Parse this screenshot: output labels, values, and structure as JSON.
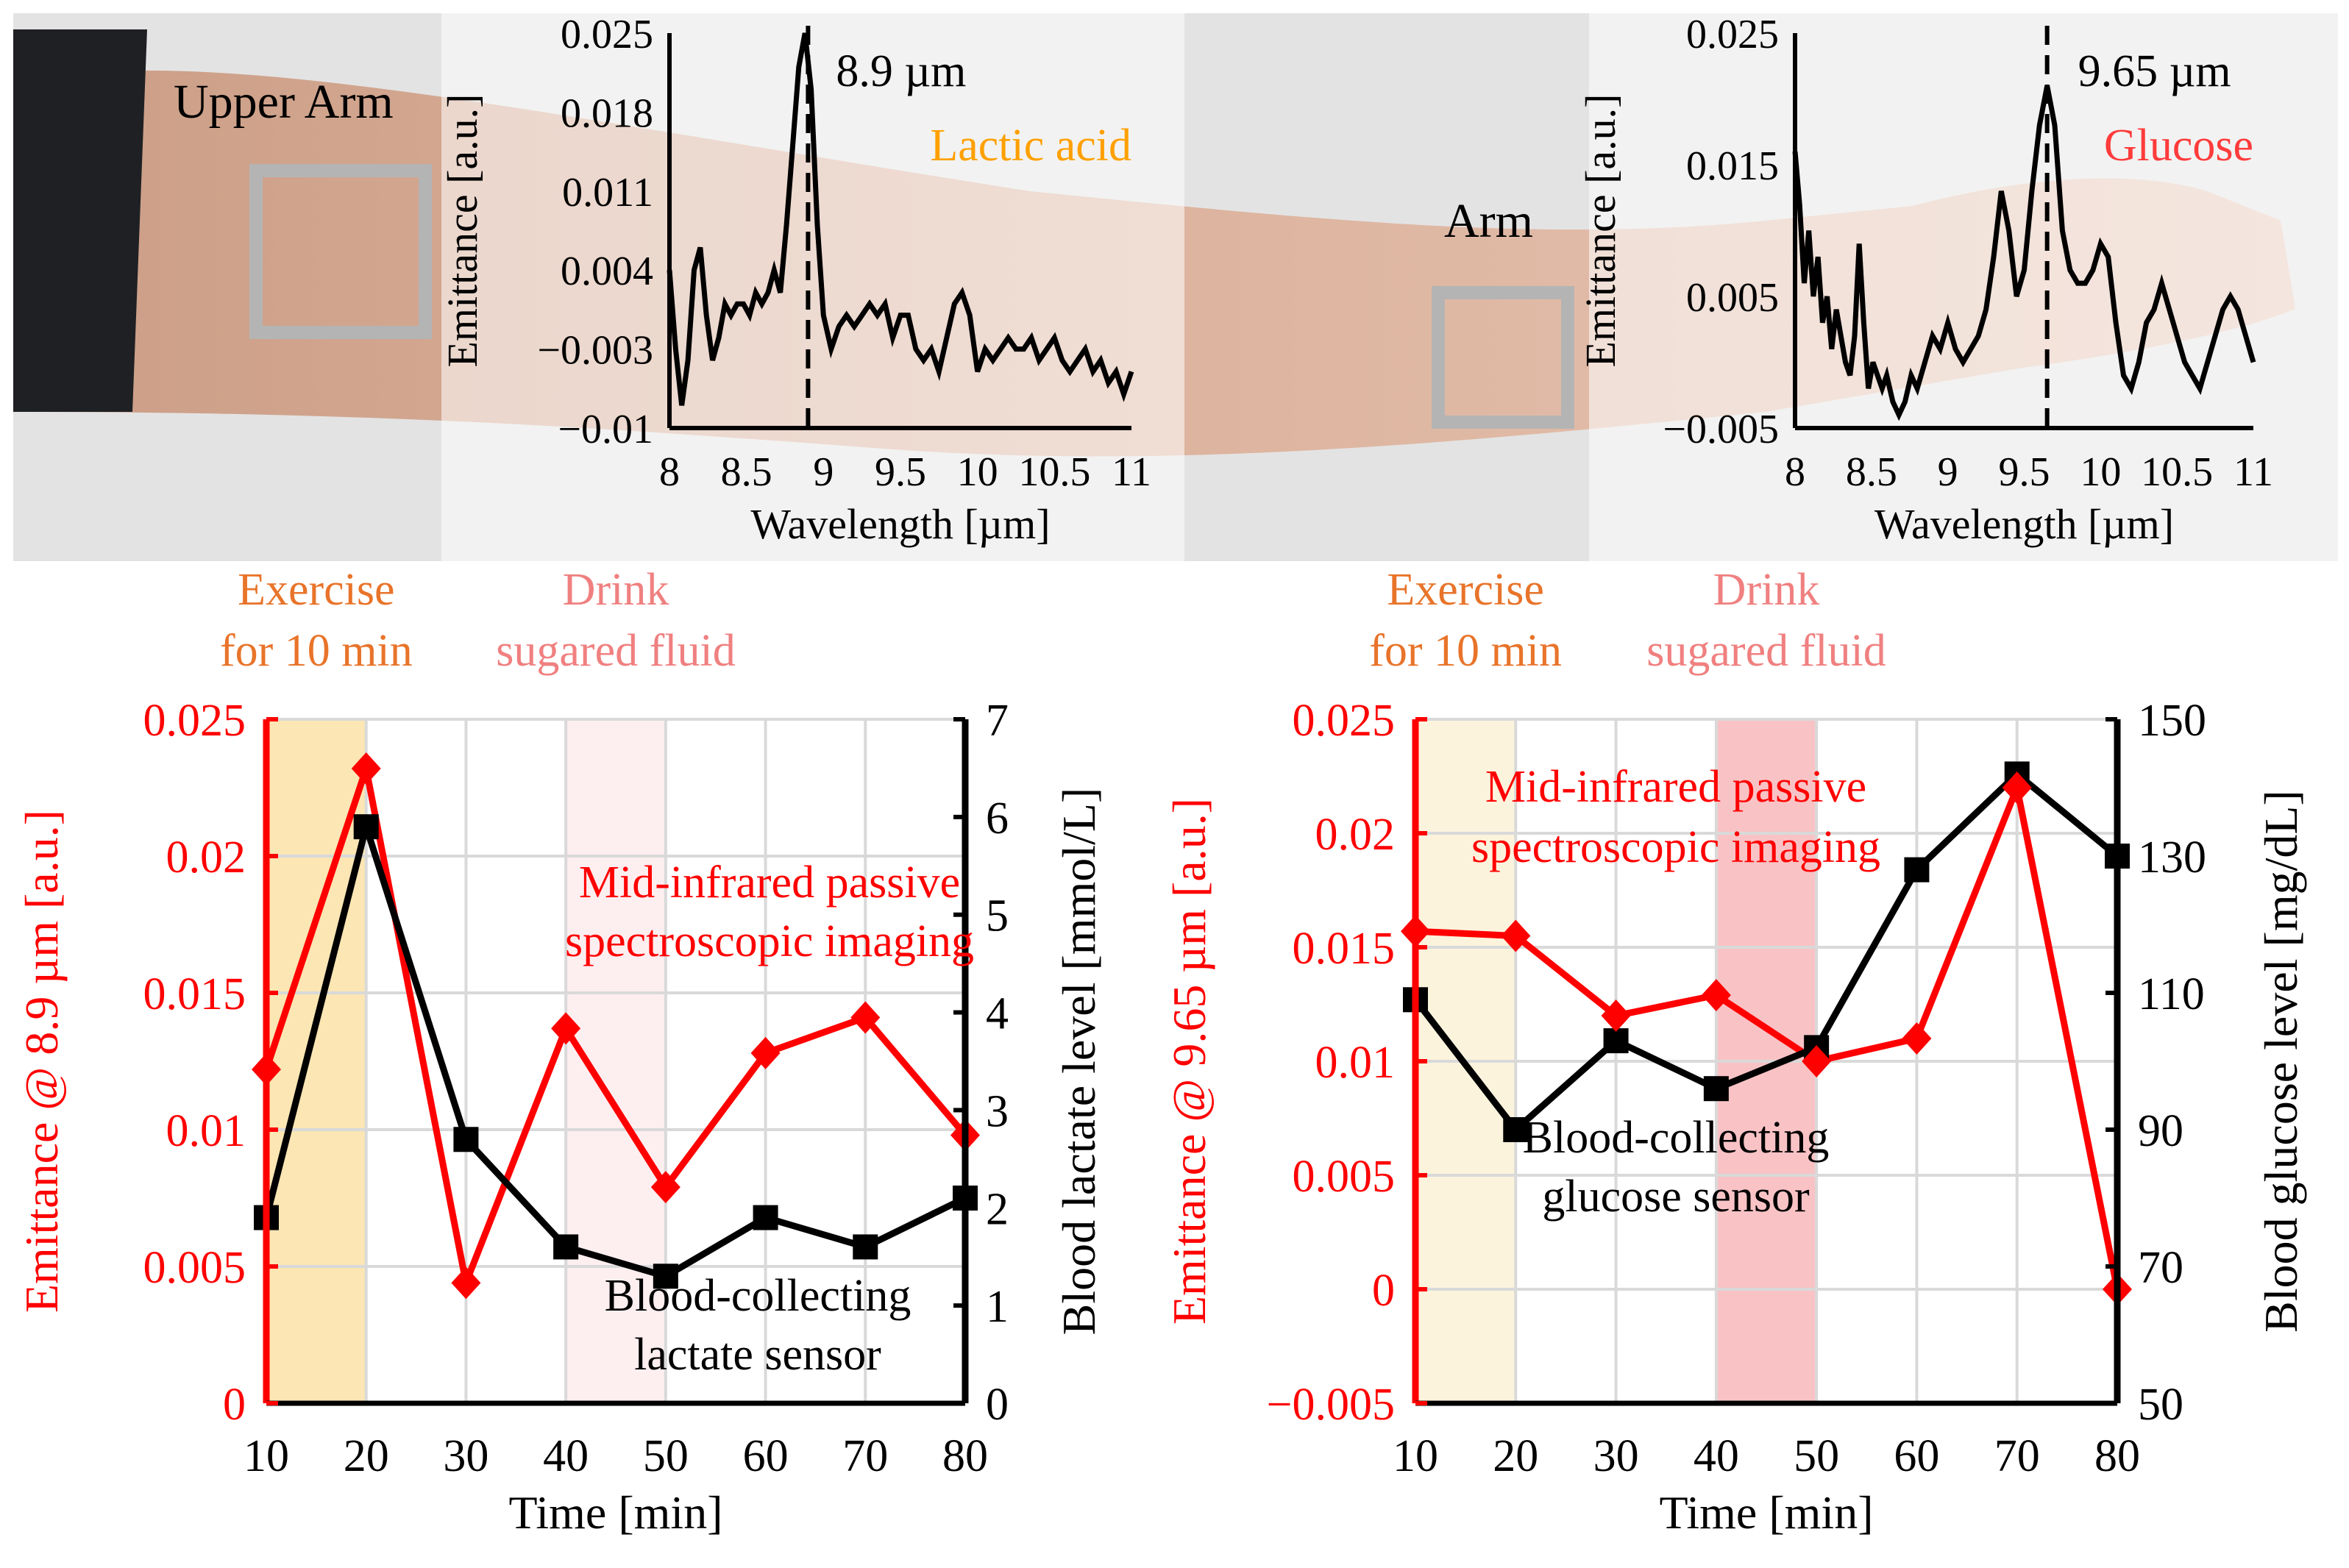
{
  "colors": {
    "red": "#ff0000",
    "black": "#000000",
    "orange_label": "#e8742a",
    "pink_label": "#f08080",
    "lactic_label": "#ffa000",
    "glucose_label": "#ff3b3b",
    "exercise_band_left": "#fbe6b4",
    "drink_band_left": "#fdeef0",
    "exercise_band_right": "#fcf3dd",
    "drink_band_right": "#f9c3c6",
    "grid": "#d9d9d9",
    "roi_box": "#b4b4b4"
  },
  "photo": {
    "upper_arm_label": "Upper Arm",
    "arm_label": "Arm"
  },
  "chart_data": [
    {
      "id": "inset-lactic",
      "type": "line",
      "title": "",
      "xlabel": "Wavelength [µm]",
      "ylabel": "Emittance [a.u.]",
      "xlim": [
        8,
        11
      ],
      "ylim": [
        -0.01,
        0.025
      ],
      "xticks": [
        8,
        8.5,
        9,
        9.5,
        10,
        10.5,
        11
      ],
      "xtick_labels": [
        "8",
        "8.5",
        "9",
        "9.5",
        "10",
        "10.5",
        "11"
      ],
      "yticks": [
        -0.01,
        -0.003,
        0.004,
        0.011,
        0.018,
        0.025
      ],
      "ytick_labels": [
        "−0.01",
        "−0.003",
        "0.004",
        "0.011",
        "0.018",
        "0.025"
      ],
      "peak_x": 8.9,
      "peak_label": "8.9 µm",
      "analyte_label": "Lactic acid",
      "x": [
        8.0,
        8.04,
        8.08,
        8.12,
        8.16,
        8.2,
        8.24,
        8.28,
        8.32,
        8.36,
        8.4,
        8.44,
        8.48,
        8.52,
        8.56,
        8.6,
        8.64,
        8.68,
        8.72,
        8.76,
        8.8,
        8.84,
        8.88,
        8.92,
        8.96,
        9.0,
        9.05,
        9.1,
        9.15,
        9.2,
        9.25,
        9.3,
        9.35,
        9.4,
        9.45,
        9.5,
        9.55,
        9.6,
        9.65,
        9.7,
        9.75,
        9.8,
        9.85,
        9.9,
        9.95,
        10.0,
        10.05,
        10.1,
        10.15,
        10.2,
        10.25,
        10.3,
        10.35,
        10.4,
        10.45,
        10.5,
        10.55,
        10.6,
        10.65,
        10.7,
        10.75,
        10.8,
        10.85,
        10.9,
        10.95,
        11.0
      ],
      "y": [
        0.004,
        -0.003,
        -0.008,
        -0.004,
        0.004,
        0.006,
        0.0,
        -0.004,
        -0.002,
        0.001,
        0.0,
        0.001,
        0.001,
        0.0,
        0.002,
        0.001,
        0.002,
        0.004,
        0.002,
        0.008,
        0.015,
        0.022,
        0.025,
        0.02,
        0.008,
        0.0,
        -0.003,
        -0.001,
        0.0,
        -0.001,
        0.0,
        0.001,
        0.0,
        0.001,
        -0.002,
        0.0,
        0.0,
        -0.003,
        -0.004,
        -0.003,
        -0.005,
        -0.002,
        0.001,
        0.002,
        0.0,
        -0.005,
        -0.003,
        -0.004,
        -0.003,
        -0.002,
        -0.003,
        -0.003,
        -0.002,
        -0.004,
        -0.003,
        -0.002,
        -0.004,
        -0.005,
        -0.004,
        -0.003,
        -0.005,
        -0.004,
        -0.006,
        -0.005,
        -0.007,
        -0.005
      ]
    },
    {
      "id": "inset-glucose",
      "type": "line",
      "title": "",
      "xlabel": "Wavelength [µm]",
      "ylabel": "Emittance [a.u.]",
      "xlim": [
        8,
        11
      ],
      "ylim": [
        -0.005,
        0.025
      ],
      "xticks": [
        8,
        8.5,
        9,
        9.5,
        10,
        10.5,
        11
      ],
      "xtick_labels": [
        "8",
        "8.5",
        "9",
        "9.5",
        "10",
        "10.5",
        "11"
      ],
      "yticks": [
        -0.005,
        0.005,
        0.015,
        0.025
      ],
      "ytick_labels": [
        "−0.005",
        "0.005",
        "0.015",
        "0.025"
      ],
      "peak_x": 9.65,
      "peak_label": "9.65 µm",
      "analyte_label": "Glucose",
      "x": [
        8.0,
        8.03,
        8.06,
        8.09,
        8.12,
        8.15,
        8.18,
        8.21,
        8.24,
        8.27,
        8.3,
        8.33,
        8.36,
        8.39,
        8.42,
        8.45,
        8.48,
        8.51,
        8.54,
        8.57,
        8.6,
        8.64,
        8.68,
        8.72,
        8.76,
        8.8,
        8.85,
        8.9,
        8.95,
        9.0,
        9.05,
        9.1,
        9.15,
        9.2,
        9.25,
        9.3,
        9.35,
        9.4,
        9.45,
        9.5,
        9.55,
        9.6,
        9.65,
        9.7,
        9.75,
        9.8,
        9.85,
        9.9,
        9.95,
        10.0,
        10.05,
        10.1,
        10.15,
        10.2,
        10.25,
        10.3,
        10.35,
        10.4,
        10.45,
        10.5,
        10.55,
        10.6,
        10.65,
        10.7,
        10.75,
        10.8,
        10.85,
        10.9,
        10.95,
        11.0
      ],
      "y": [
        0.016,
        0.012,
        0.006,
        0.01,
        0.005,
        0.008,
        0.003,
        0.005,
        0.001,
        0.004,
        0.002,
        0.0,
        -0.001,
        0.002,
        0.009,
        0.003,
        -0.002,
        0.0,
        -0.001,
        -0.002,
        -0.001,
        -0.003,
        -0.004,
        -0.003,
        -0.001,
        -0.002,
        0.0,
        0.002,
        0.001,
        0.003,
        0.001,
        0.0,
        0.001,
        0.002,
        0.004,
        0.008,
        0.013,
        0.01,
        0.005,
        0.007,
        0.013,
        0.018,
        0.021,
        0.018,
        0.01,
        0.007,
        0.006,
        0.006,
        0.007,
        0.009,
        0.008,
        0.003,
        -0.001,
        -0.002,
        0.0,
        0.003,
        0.004,
        0.006,
        0.004,
        0.002,
        0.0,
        -0.001,
        -0.002,
        0.0,
        0.002,
        0.004,
        0.005,
        0.004,
        0.002,
        0.0
      ]
    },
    {
      "id": "chart-lactate",
      "type": "line",
      "title": "",
      "xlabel": "Time [min]",
      "ylabel_left": "Emittance @ 8.9 µm [a.u.]",
      "ylabel_right": "Blood lactate level [mmol/L]",
      "x": [
        10,
        20,
        30,
        40,
        50,
        60,
        70,
        80
      ],
      "xlim": [
        10,
        80
      ],
      "xtick_labels": [
        "10",
        "20",
        "30",
        "40",
        "50",
        "60",
        "70",
        "80"
      ],
      "ylim_left": [
        0,
        0.025
      ],
      "yticks_left": [
        0,
        0.005,
        0.01,
        0.015,
        0.02,
        0.025
      ],
      "ytick_labels_left": [
        "0",
        "0.005",
        "0.01",
        "0.015",
        "0.02",
        "0.025"
      ],
      "ylim_right": [
        0,
        7
      ],
      "yticks_right": [
        0,
        1,
        2,
        3,
        4,
        5,
        6,
        7
      ],
      "ytick_labels_right": [
        "0",
        "1",
        "2",
        "3",
        "4",
        "5",
        "6",
        "7"
      ],
      "series": [
        {
          "name": "Mid-infrared passive spectroscopic imaging",
          "axis": "left",
          "marker": "diamond",
          "values": [
            0.0122,
            0.0232,
            0.0044,
            0.0137,
            0.0079,
            0.0128,
            0.0141,
            0.0098
          ]
        },
        {
          "name": "Blood-collecting lactate sensor",
          "axis": "right",
          "marker": "square",
          "values": [
            1.9,
            5.9,
            2.7,
            1.6,
            1.3,
            1.9,
            1.6,
            2.1
          ]
        }
      ],
      "series_label_red": [
        "Mid-infrared passive",
        "spectroscopic imaging"
      ],
      "series_label_black": [
        "Blood-collecting",
        "lactate sensor"
      ],
      "bands": [
        {
          "name": "exercise",
          "from": 10,
          "to": 20,
          "label": [
            "Exercise",
            "for 10 min"
          ]
        },
        {
          "name": "drink",
          "from": 40,
          "to": 50,
          "label": [
            "Drink",
            "sugared fluid"
          ]
        }
      ]
    },
    {
      "id": "chart-glucose",
      "type": "line",
      "title": "",
      "xlabel": "Time [min]",
      "ylabel_left": "Emittance @ 9.65 µm [a.u.]",
      "ylabel_right": "Blood glucose level [mg/dL]",
      "x": [
        10,
        20,
        30,
        40,
        50,
        60,
        70,
        80
      ],
      "xlim": [
        10,
        80
      ],
      "xtick_labels": [
        "10",
        "20",
        "30",
        "40",
        "50",
        "60",
        "70",
        "80"
      ],
      "ylim_left": [
        -0.005,
        0.025
      ],
      "yticks_left": [
        -0.005,
        0,
        0.005,
        0.01,
        0.015,
        0.02,
        0.025
      ],
      "ytick_labels_left": [
        "−0.005",
        "0",
        "0.005",
        "0.01",
        "0.015",
        "0.02",
        "0.025"
      ],
      "ylim_right": [
        50,
        150
      ],
      "yticks_right": [
        50,
        70,
        90,
        110,
        130,
        150
      ],
      "ytick_labels_right": [
        "50",
        "70",
        "90",
        "110",
        "130",
        "150"
      ],
      "series": [
        {
          "name": "Mid-infrared passive spectroscopic imaging",
          "axis": "left",
          "marker": "diamond",
          "values": [
            0.0157,
            0.0155,
            0.012,
            0.0129,
            0.01,
            0.011,
            0.022,
            0.0
          ]
        },
        {
          "name": "Blood-collecting glucose sensor",
          "axis": "right",
          "marker": "square",
          "values": [
            109,
            90,
            103,
            96,
            102,
            128,
            142,
            130
          ]
        }
      ],
      "series_label_red": [
        "Mid-infrared passive",
        "spectroscopic imaging"
      ],
      "series_label_black": [
        "Blood-collecting",
        "glucose sensor"
      ],
      "bands": [
        {
          "name": "exercise",
          "from": 10,
          "to": 20,
          "label": [
            "Exercise",
            "for 10 min"
          ]
        },
        {
          "name": "drink",
          "from": 40,
          "to": 50,
          "label": [
            "Drink",
            "sugared fluid"
          ]
        }
      ]
    }
  ]
}
